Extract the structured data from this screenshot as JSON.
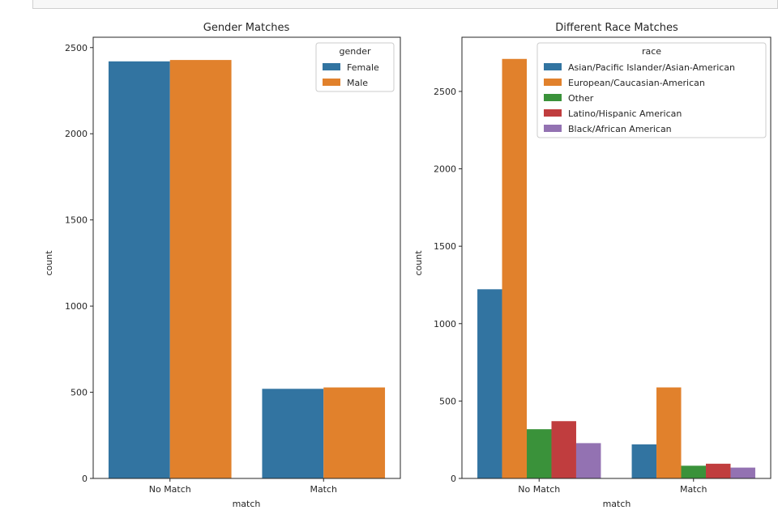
{
  "chart_data": [
    {
      "type": "bar",
      "title": "Gender Matches",
      "xlabel": "match",
      "ylabel": "count",
      "categories": [
        "No Match",
        "Match"
      ],
      "ylim": [
        0,
        2560
      ],
      "yticks": [
        0,
        500,
        1000,
        1500,
        2000,
        2500
      ],
      "legend": {
        "title": "gender",
        "placement": "top-right"
      },
      "series": [
        {
          "name": "Female",
          "color": "#3274a1",
          "values": [
            2420,
            520
          ]
        },
        {
          "name": "Male",
          "color": "#e1812c",
          "values": [
            2428,
            528
          ]
        }
      ]
    },
    {
      "type": "bar",
      "title": "Different Race Matches",
      "xlabel": "match",
      "ylabel": "count",
      "categories": [
        "No Match",
        "Match"
      ],
      "ylim": [
        0,
        2850
      ],
      "yticks": [
        0,
        500,
        1000,
        1500,
        2000,
        2500
      ],
      "legend": {
        "title": "race",
        "placement": "top-right"
      },
      "series": [
        {
          "name": "Asian/Pacific Islander/Asian-American",
          "color": "#3274a1",
          "values": [
            1222,
            220
          ]
        },
        {
          "name": "European/Caucasian-American",
          "color": "#e1812c",
          "values": [
            2710,
            588
          ]
        },
        {
          "name": "Other",
          "color": "#3a923a",
          "values": [
            318,
            82
          ]
        },
        {
          "name": "Latino/Hispanic American",
          "color": "#c03d3e",
          "values": [
            370,
            95
          ]
        },
        {
          "name": "Black/African American",
          "color": "#9372b2",
          "values": [
            228,
            70
          ]
        }
      ]
    }
  ]
}
